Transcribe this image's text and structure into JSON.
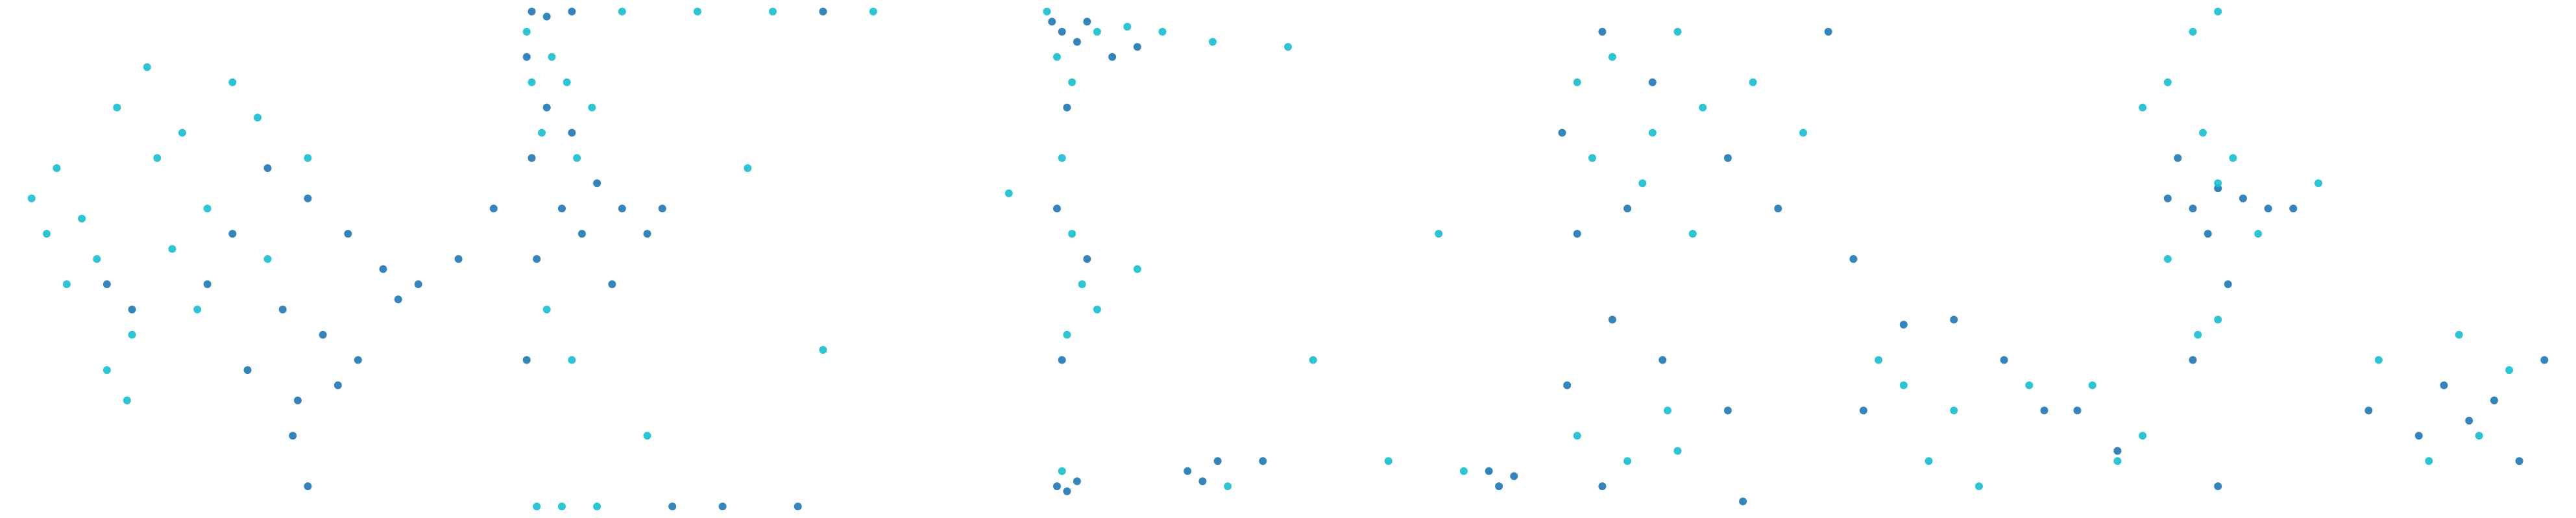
{
  "chart_data": [
    {
      "type": "scatter",
      "xlim": [
        0,
        1
      ],
      "ylim": [
        0,
        1
      ],
      "series": [
        {
          "color": "#1f77b4",
          "x": [
            0.45,
            0.52,
            0.6,
            0.68,
            0.75,
            0.82,
            0.9,
            0.97,
            0.55,
            0.63,
            0.7,
            0.78,
            0.4,
            0.48,
            0.58,
            0.66,
            0.2,
            0.25,
            0.57,
            0.6
          ],
          "y": [
            0.55,
            0.68,
            0.62,
            0.55,
            0.48,
            0.45,
            0.5,
            0.6,
            0.4,
            0.35,
            0.3,
            0.42,
            0.45,
            0.28,
            0.22,
            0.25,
            0.45,
            0.4,
            0.15,
            0.05
          ]
        },
        {
          "color": "#17becf",
          "x": [
            0.05,
            0.1,
            0.15,
            0.22,
            0.28,
            0.3,
            0.35,
            0.4,
            0.45,
            0.12,
            0.18,
            0.25,
            0.33,
            0.5,
            0.08,
            0.2,
            0.38,
            0.52,
            0.24,
            0.6
          ],
          "y": [
            0.62,
            0.68,
            0.58,
            0.8,
            0.88,
            0.7,
            0.75,
            0.6,
            0.85,
            0.45,
            0.5,
            0.35,
            0.52,
            0.78,
            0.55,
            0.28,
            0.4,
            0.5,
            0.22,
            0.7
          ]
        }
      ]
    },
    {
      "type": "scatter",
      "xlim": [
        0,
        1
      ],
      "ylim": [
        0,
        1
      ],
      "series": [
        {
          "color": "#1f77b4",
          "x": [
            0.01,
            0.02,
            0.03,
            0.05,
            0.08,
            0.1,
            0.12,
            0.15,
            0.2,
            0.25,
            0.28,
            0.05,
            0.02,
            0.1,
            0.3,
            0.4,
            0.55,
            0.6,
            0.01,
            0.18
          ],
          "y": [
            0.9,
            0.7,
            0.5,
            0.8,
            0.6,
            0.75,
            0.55,
            0.65,
            0.6,
            0.55,
            0.6,
            0.98,
            0.99,
            0.99,
            0.01,
            0.01,
            0.01,
            0.99,
            0.3,
            0.45
          ]
        },
        {
          "color": "#17becf",
          "x": [
            0.01,
            0.02,
            0.04,
            0.06,
            0.09,
            0.11,
            0.14,
            0.05,
            0.2,
            0.35,
            0.5,
            0.7,
            0.08,
            0.03,
            0.15,
            0.6,
            0.1,
            0.25,
            0.45,
            0.97
          ],
          "y": [
            0.95,
            0.85,
            0.75,
            0.9,
            0.85,
            0.7,
            0.8,
            0.4,
            0.99,
            0.99,
            0.99,
            0.99,
            0.01,
            0.01,
            0.01,
            0.32,
            0.3,
            0.15,
            0.68,
            0.63
          ]
        }
      ]
    },
    {
      "type": "scatter",
      "xlim": [
        0,
        1
      ],
      "ylim": [
        0,
        1
      ],
      "series": [
        {
          "color": "#1f77b4",
          "x": [
            0.03,
            0.05,
            0.08,
            0.1,
            0.15,
            0.2,
            0.06,
            0.04,
            0.1,
            0.05,
            0.04,
            0.06,
            0.08,
            0.3,
            0.33,
            0.36,
            0.45,
            0.92,
            0.95,
            0.9
          ],
          "y": [
            0.97,
            0.95,
            0.93,
            0.97,
            0.9,
            0.92,
            0.8,
            0.6,
            0.5,
            0.3,
            0.05,
            0.04,
            0.06,
            0.08,
            0.06,
            0.1,
            0.1,
            0.05,
            0.07,
            0.08
          ]
        },
        {
          "color": "#17becf",
          "x": [
            0.02,
            0.04,
            0.07,
            0.12,
            0.18,
            0.25,
            0.35,
            0.5,
            0.05,
            0.07,
            0.09,
            0.06,
            0.12,
            0.2,
            0.55,
            0.7,
            0.85,
            0.8,
            0.05,
            0.38
          ],
          "y": [
            0.99,
            0.9,
            0.85,
            0.95,
            0.96,
            0.95,
            0.93,
            0.92,
            0.7,
            0.55,
            0.45,
            0.35,
            0.4,
            0.48,
            0.3,
            0.1,
            0.08,
            0.55,
            0.08,
            0.05
          ]
        }
      ]
    },
    {
      "type": "scatter",
      "xlim": [
        0,
        1
      ],
      "ylim": [
        0,
        1
      ],
      "series": [
        {
          "color": "#1f77b4",
          "x": [
            0.02,
            0.1,
            0.2,
            0.35,
            0.45,
            0.55,
            0.6,
            0.05,
            0.15,
            0.03,
            0.12,
            0.22,
            0.1,
            0.35,
            0.38,
            0.62,
            0.7,
            0.8,
            0.9,
            0.98
          ],
          "y": [
            0.75,
            0.95,
            0.85,
            0.7,
            0.6,
            0.95,
            0.5,
            0.55,
            0.6,
            0.25,
            0.38,
            0.3,
            0.05,
            0.2,
            0.02,
            0.2,
            0.37,
            0.38,
            0.3,
            0.2
          ]
        },
        {
          "color": "#17becf",
          "x": [
            0.05,
            0.12,
            0.25,
            0.3,
            0.4,
            0.5,
            0.18,
            0.08,
            0.28,
            0.2,
            0.05,
            0.15,
            0.23,
            0.25,
            0.65,
            0.75,
            0.85,
            0.95,
            0.8,
            0.7
          ],
          "y": [
            0.85,
            0.9,
            0.95,
            0.8,
            0.85,
            0.75,
            0.65,
            0.7,
            0.55,
            0.75,
            0.15,
            0.1,
            0.2,
            0.12,
            0.3,
            0.1,
            0.05,
            0.25,
            0.2,
            0.25
          ]
        }
      ]
    },
    {
      "type": "scatter",
      "xlim": [
        0,
        1
      ],
      "ylim": [
        0,
        1
      ],
      "series": [
        {
          "color": "#1f77b4",
          "x": [
            0.2,
            0.25,
            0.3,
            0.35,
            0.28,
            0.4,
            0.22,
            0.32,
            0.45,
            0.02,
            0.1,
            0.25,
            0.3,
            0.6,
            0.7,
            0.75,
            0.8,
            0.85,
            0.9,
            0.95
          ],
          "y": [
            0.62,
            0.6,
            0.64,
            0.62,
            0.55,
            0.6,
            0.7,
            0.45,
            0.6,
            0.2,
            0.12,
            0.3,
            0.05,
            0.2,
            0.15,
            0.25,
            0.18,
            0.22,
            0.1,
            0.3
          ]
        },
        {
          "color": "#17becf",
          "x": [
            0.15,
            0.2,
            0.27,
            0.33,
            0.38,
            0.25,
            0.3,
            0.2,
            0.05,
            0.15,
            0.26,
            0.3,
            0.62,
            0.72,
            0.78,
            0.82,
            0.88,
            0.3,
            0.1,
            0.5
          ],
          "y": [
            0.8,
            0.85,
            0.75,
            0.7,
            0.55,
            0.95,
            0.99,
            0.5,
            0.25,
            0.15,
            0.35,
            0.38,
            0.3,
            0.1,
            0.35,
            0.15,
            0.28,
            0.65,
            0.1,
            0.65
          ]
        }
      ]
    }
  ]
}
